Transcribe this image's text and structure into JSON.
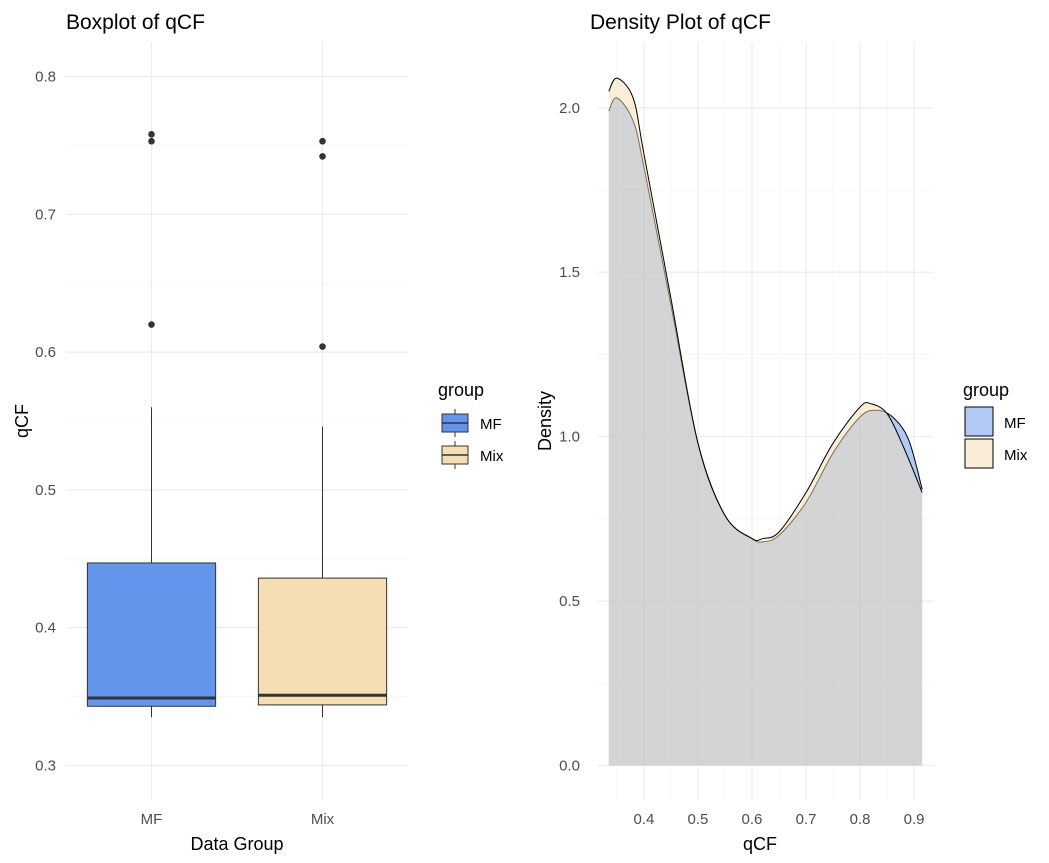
{
  "chart_data": [
    {
      "type": "boxplot",
      "title": "Boxplot of qCF",
      "xlabel": "Data Group",
      "ylabel": "qCF",
      "ylim": [
        0.275,
        0.825
      ],
      "yticks": [
        "0.3",
        "0.4",
        "0.5",
        "0.6",
        "0.7",
        "0.8"
      ],
      "categories": [
        "MF",
        "Mix"
      ],
      "boxes": [
        {
          "group": "MF",
          "whisker_low": 0.335,
          "q1": 0.343,
          "median": 0.349,
          "q3": 0.447,
          "whisker_high": 0.56,
          "outliers": [
            0.62,
            0.753,
            0.758
          ]
        },
        {
          "group": "Mix",
          "whisker_low": 0.335,
          "q1": 0.344,
          "median": 0.351,
          "q3": 0.436,
          "whisker_high": 0.546,
          "outliers": [
            0.604,
            0.742,
            0.753
          ]
        }
      ],
      "legend": {
        "title": "group",
        "placement": "right",
        "entries": [
          {
            "label": "MF",
            "color": "#6495ED"
          },
          {
            "label": "Mix",
            "color": "#F5DEB3"
          }
        ]
      },
      "grid": true
    },
    {
      "type": "area",
      "title": "Density Plot of qCF",
      "xlabel": "qCF",
      "ylabel": "Density",
      "xlim": [
        0.315,
        0.935
      ],
      "ylim": [
        -0.105,
        2.2
      ],
      "xticks": [
        "0.4",
        "0.5",
        "0.6",
        "0.7",
        "0.8",
        "0.9"
      ],
      "yticks": [
        "0.0",
        "0.5",
        "1.0",
        "1.5",
        "2.0"
      ],
      "series": [
        {
          "name": "MF",
          "color": "#6495ED",
          "alpha": 0.5,
          "x": [
            0.335,
            0.35,
            0.38,
            0.4,
            0.45,
            0.5,
            0.55,
            0.6,
            0.62,
            0.65,
            0.7,
            0.75,
            0.8,
            0.83,
            0.86,
            0.89,
            0.915
          ],
          "y": [
            1.99,
            2.03,
            1.96,
            1.82,
            1.4,
            0.98,
            0.76,
            0.69,
            0.68,
            0.7,
            0.8,
            0.95,
            1.06,
            1.08,
            1.06,
            0.99,
            0.84
          ]
        },
        {
          "name": "Mix",
          "color": "#F5DEB3",
          "alpha": 0.5,
          "x": [
            0.335,
            0.35,
            0.38,
            0.4,
            0.45,
            0.5,
            0.55,
            0.6,
            0.62,
            0.65,
            0.7,
            0.75,
            0.8,
            0.82,
            0.85,
            0.88,
            0.915
          ],
          "y": [
            2.05,
            2.09,
            2.03,
            1.86,
            1.42,
            0.98,
            0.76,
            0.69,
            0.69,
            0.71,
            0.83,
            0.98,
            1.09,
            1.1,
            1.07,
            0.97,
            0.83
          ]
        }
      ],
      "legend": {
        "title": "group",
        "placement": "right",
        "entries": [
          {
            "label": "MF",
            "color": "#B3C9F5"
          },
          {
            "label": "Mix",
            "color": "#F9EDDA"
          }
        ]
      },
      "grid": true
    }
  ]
}
